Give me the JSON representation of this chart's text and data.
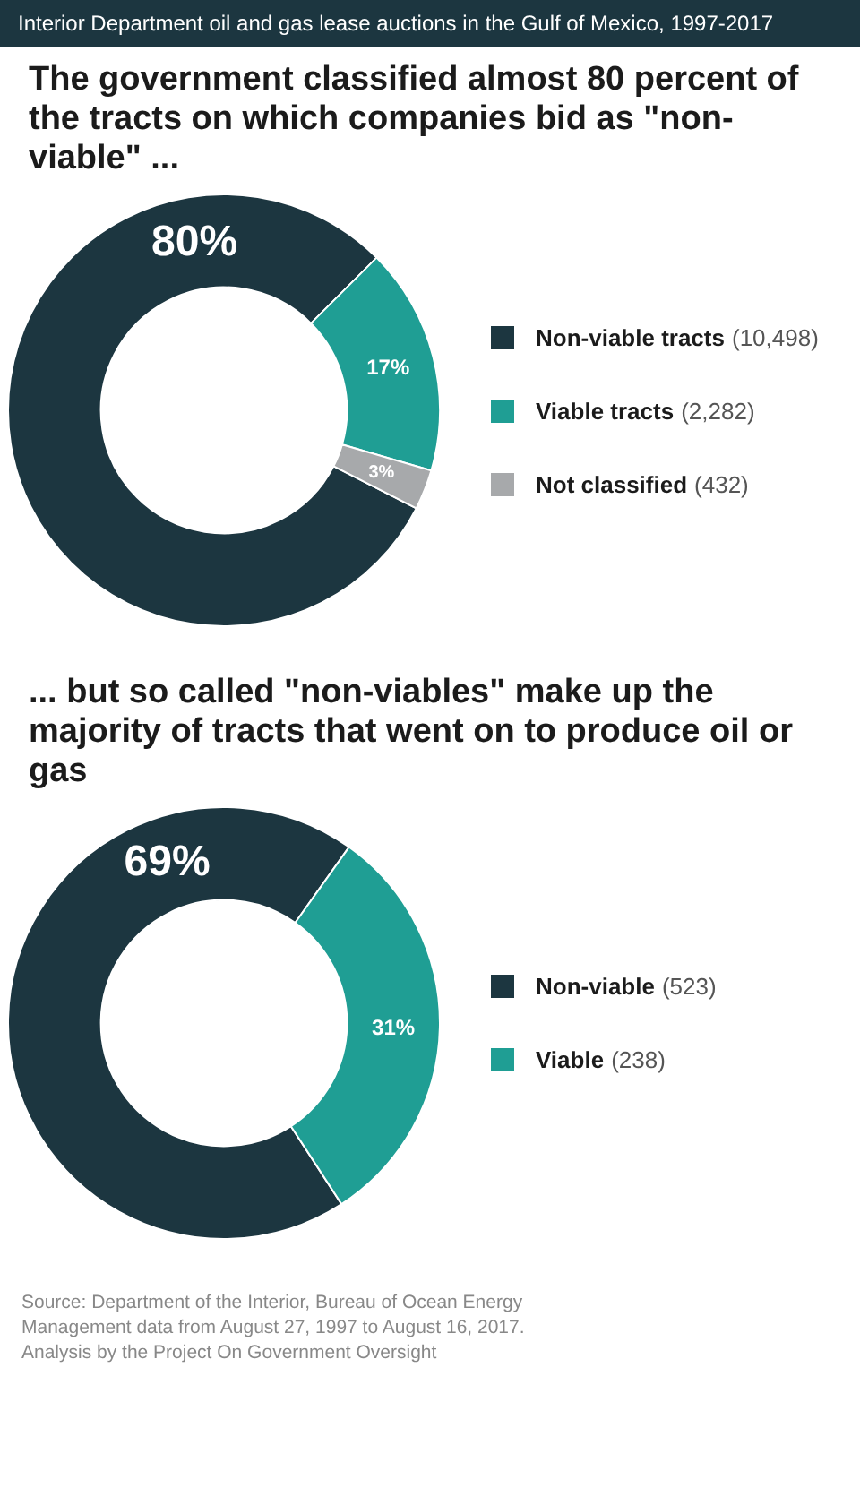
{
  "chart_data": [
    {
      "type": "donut",
      "title": "Interior Department oil and gas lease auctions in the Gulf of Mexico, 1997-2017",
      "subtitle": "The government classified almost 80 percent of the tracts on which companies bid as \"non-viable\" ...",
      "categories": [
        "Non-viable tracts (10,498)",
        "Viable tracts (2,282)",
        "Not classified (432)"
      ],
      "values": [
        80,
        17,
        3
      ],
      "value_labels": [
        "80%",
        "17%",
        "3%"
      ],
      "colors": [
        "#1c3640",
        "#1f9e94",
        "#a7a9ab"
      ],
      "legend": "right"
    },
    {
      "type": "donut",
      "title": "... but so called \"non-viables\" make up the majority of tracts that went on to produce oil or gas",
      "categories": [
        "Non-viable (523)",
        "Viable (238)"
      ],
      "values": [
        69,
        31
      ],
      "value_labels": [
        "69%",
        "31%"
      ],
      "colors": [
        "#1c3640",
        "#1f9e94"
      ],
      "legend": "right",
      "annotations": [
        "Source: Department of the Interior, Bureau of Ocean Energy Management data from August 27, 1997 to August 16, 2017. Analysis by the Project On Government Oversight"
      ]
    }
  ]
}
